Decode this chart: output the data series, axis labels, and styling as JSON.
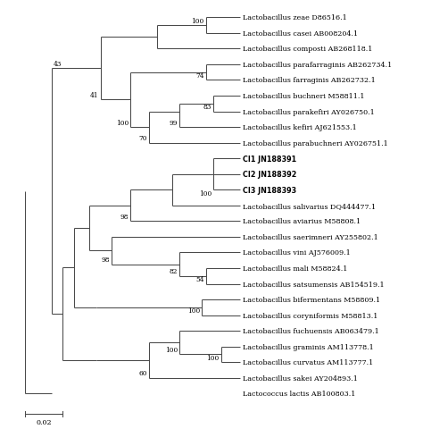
{
  "figsize": [
    4.74,
    4.81
  ],
  "dpi": 100,
  "scale_bar_value": "0.02",
  "tree_color": "#4a4a4a",
  "label_color": "#000000",
  "bootstrap_color": "#000000",
  "font_size": 5.8,
  "bootstrap_font_size": 5.3,
  "lw": 0.75,
  "bold_taxa": [
    "CI1 JN188391",
    "CI2 JN188392",
    "CI3 JN188393"
  ],
  "taxa_labels": [
    [
      "Lactobacillus zeae",
      " D86516.1",
      false
    ],
    [
      "Lactobacillus casei",
      " AB008204.1",
      false
    ],
    [
      "Lactobacillus composti",
      " AB268118.1",
      false
    ],
    [
      "Lactobacillus parafarraginis",
      " AB262734.1",
      false
    ],
    [
      "Lactobacillus farraginis",
      " AB262732.1",
      false
    ],
    [
      "Lactobacillus buchneri",
      " M58811.1",
      false
    ],
    [
      "Lactobacillus parakefiri",
      " AY026750.1",
      false
    ],
    [
      "Lactobacillus kefiri",
      " AJ621553.1",
      false
    ],
    [
      "Lactobacillus parabuchneri",
      " AY026751.1",
      false
    ],
    [
      "CI1 JN188391",
      "",
      true
    ],
    [
      "CI2 JN188392",
      "",
      true
    ],
    [
      "CI3 JN188393",
      "",
      true
    ],
    [
      "Lactobacillus salivarius",
      " DQ444477.1",
      false
    ],
    [
      "Lactobacillus aviarius",
      " M58808.1",
      false
    ],
    [
      "Lactobacillus saerimneri",
      " AY255802.1",
      false
    ],
    [
      "Lactobacillus vini",
      " AJ576009.1",
      false
    ],
    [
      "Lactobacillus mali",
      " M58824.1",
      false
    ],
    [
      "Lactobacillus satsumensis",
      " AB154519.1",
      false
    ],
    [
      "Lactobacillus bifermentans",
      " M58809.1",
      false
    ],
    [
      "Lactobacillus coryniformis",
      " M58813.1",
      false
    ],
    [
      "Lactobacillus fuchuensis",
      " AB063479.1",
      false
    ],
    [
      "Lactobacillus graminis",
      " AM113778.1",
      false
    ],
    [
      "Lactobacillus curvatus",
      " AM113777.1",
      false
    ],
    [
      "Lactobacillus sakei",
      " AY204893.1",
      false
    ],
    [
      "Lactococcus lactis",
      " AB100803.1",
      false
    ]
  ]
}
